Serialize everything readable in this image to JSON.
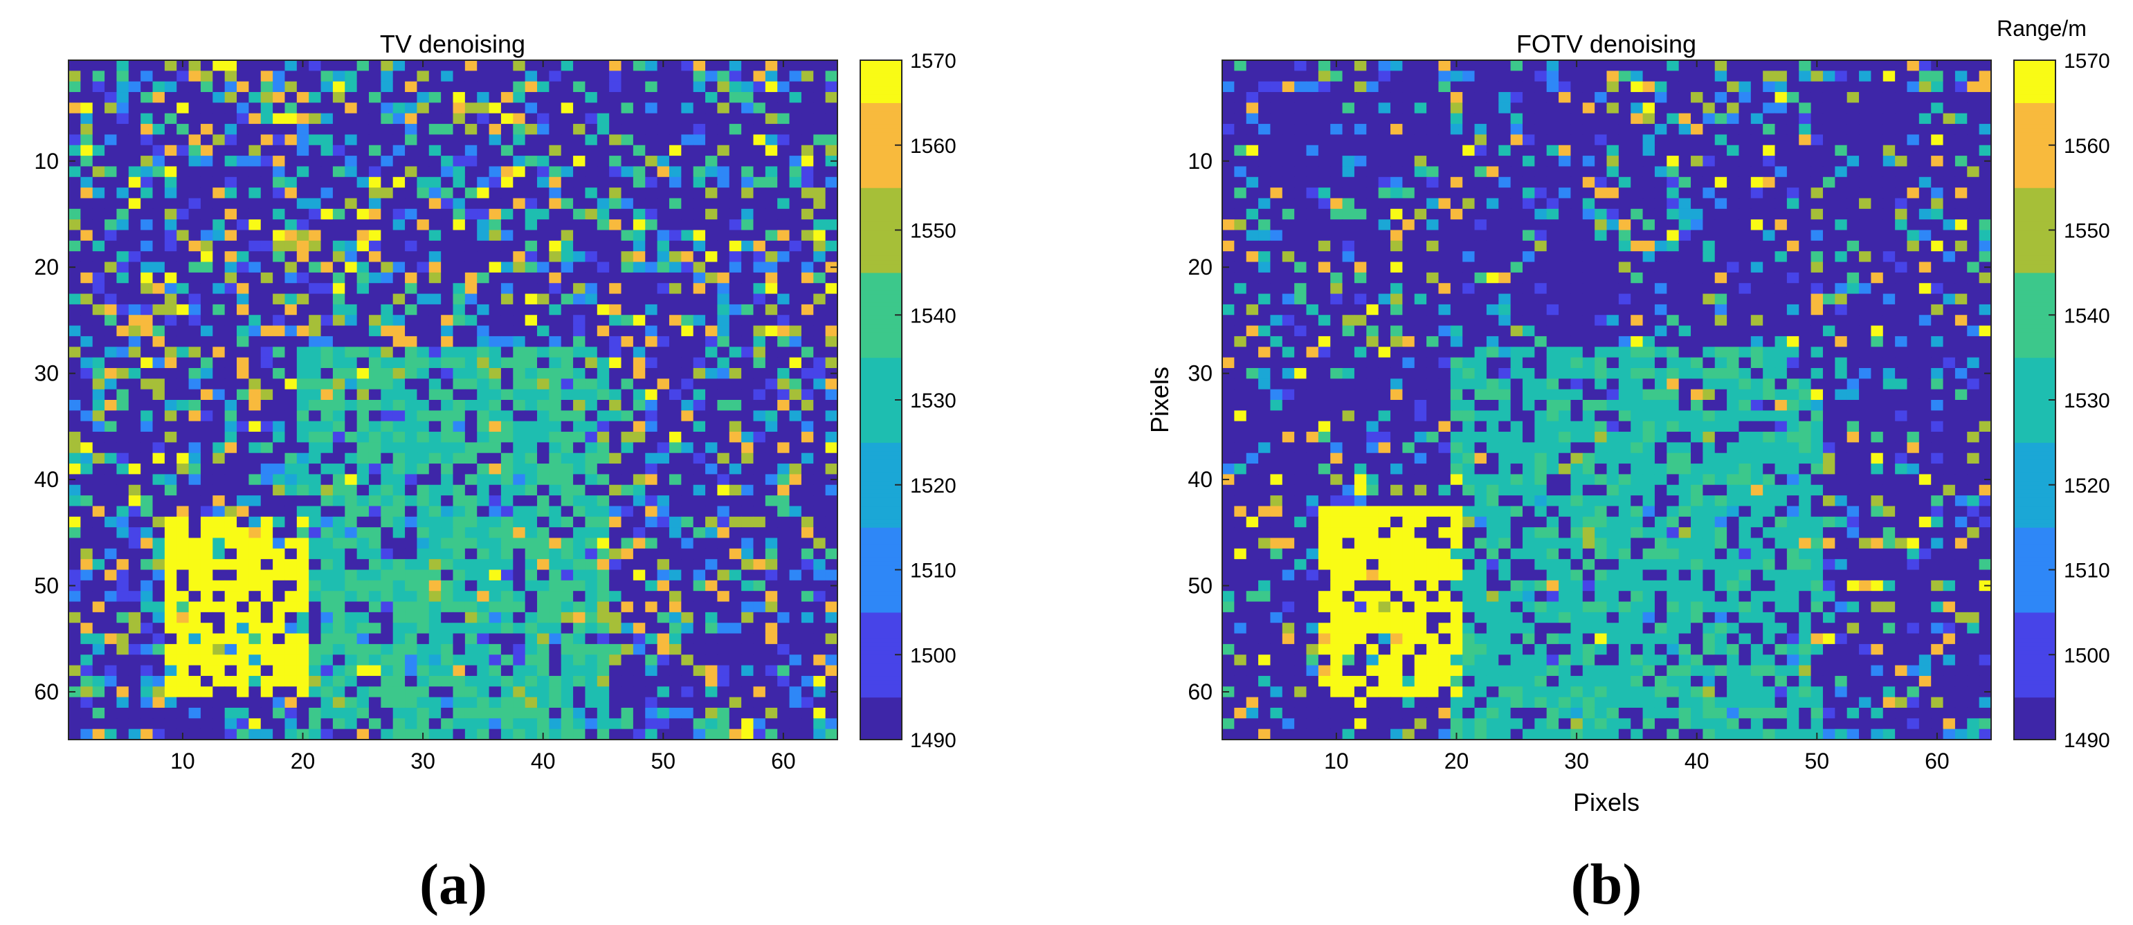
{
  "chart_data": [
    {
      "type": "heatmap",
      "panel_label": "(a)",
      "title": "TV denoising",
      "xlabel": "",
      "ylabel": "",
      "x_range": [
        0.5,
        64.5
      ],
      "y_range": [
        0.5,
        64.5
      ],
      "y_direction": "reversed",
      "x_ticks": [
        10,
        20,
        30,
        40,
        50,
        60
      ],
      "y_ticks": [
        10,
        20,
        30,
        40,
        50,
        60
      ],
      "grid": false,
      "colorbar": {
        "label": "",
        "min": 1490,
        "max": 1570,
        "ticks": [
          1490,
          1500,
          1510,
          1520,
          1530,
          1540,
          1550,
          1560,
          1570
        ],
        "colormap": "parula",
        "colors": [
          "#3e26a8",
          "#4744e8",
          "#2e87f7",
          "#1ba7d6",
          "#1ebeb0",
          "#3cc88b",
          "#a6bf38",
          "#f8ba3d",
          "#f9fb15"
        ]
      },
      "data_description_rows": 64,
      "data_description_cols": 64,
      "background_value": 1493,
      "noise_value_range": [
        1490,
        1570
      ],
      "noise_density": 0.42,
      "target_region": {
        "rows": [
          28,
          64
        ],
        "cols": [
          20,
          45
        ],
        "value": 1535
      },
      "bright_region": {
        "rows": [
          44,
          60
        ],
        "cols": [
          9,
          20
        ],
        "value": 1570
      }
    },
    {
      "type": "heatmap",
      "panel_label": "(b)",
      "title": "FOTV denoising",
      "xlabel": "Pixels",
      "ylabel": "Pixels",
      "x_range": [
        0.5,
        64.5
      ],
      "y_range": [
        0.5,
        64.5
      ],
      "y_direction": "reversed",
      "x_ticks": [
        10,
        20,
        30,
        40,
        50,
        60
      ],
      "y_ticks": [
        10,
        20,
        30,
        40,
        50,
        60
      ],
      "grid": false,
      "colorbar": {
        "label": "Range/m",
        "min": 1490,
        "max": 1570,
        "ticks": [
          1490,
          1500,
          1510,
          1520,
          1530,
          1540,
          1550,
          1560,
          1570
        ],
        "colormap": "parula",
        "colors": [
          "#3e26a8",
          "#4744e8",
          "#2e87f7",
          "#1ba7d6",
          "#1ebeb0",
          "#3cc88b",
          "#a6bf38",
          "#f8ba3d",
          "#f9fb15"
        ]
      },
      "data_description_rows": 64,
      "data_description_cols": 64,
      "background_value": 1493,
      "noise_value_range": [
        1490,
        1570
      ],
      "noise_density": 0.28,
      "target_region": {
        "rows": [
          28,
          64
        ],
        "cols": [
          20,
          50
        ],
        "value": 1533
      },
      "bright_region": {
        "rows": [
          43,
          60
        ],
        "cols": [
          9,
          20
        ],
        "value": 1570
      }
    }
  ]
}
